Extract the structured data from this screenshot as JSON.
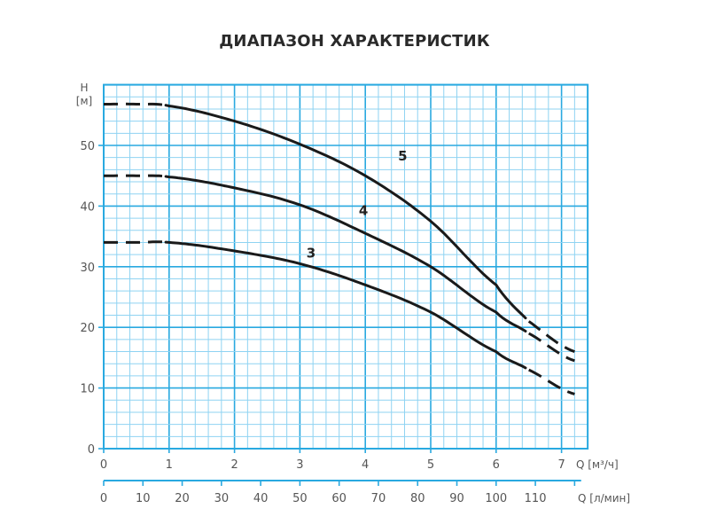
{
  "chart_data": {
    "type": "line",
    "title": "ДИАПАЗОН ХАРАКТЕРИСТИК",
    "xlabel": "Q [м³/ч]",
    "xlabel_secondary": "Q [л/мин]",
    "ylabel_top": "H",
    "ylabel_unit": "[м]",
    "xlim": [
      0,
      7.4
    ],
    "ylim": [
      0,
      60
    ],
    "x_ticks": [
      "0",
      "1",
      "2",
      "3",
      "4",
      "5",
      "6",
      "7"
    ],
    "x_secondary_ticks": [
      "0",
      "10",
      "20",
      "30",
      "40",
      "50",
      "60",
      "70",
      "80",
      "90",
      "100",
      "110"
    ],
    "y_ticks": [
      "0",
      "10",
      "20",
      "30",
      "40",
      "50"
    ],
    "grid": true,
    "x": [
      0,
      0.5,
      1,
      2,
      3,
      4,
      5,
      6,
      6.5,
      7.2
    ],
    "series": [
      {
        "name": "5",
        "values": [
          56.8,
          56.8,
          56.5,
          54,
          50.2,
          45,
          37.5,
          27,
          21,
          16
        ]
      },
      {
        "name": "4",
        "values": [
          45,
          45,
          44.8,
          43,
          40.2,
          35.5,
          30,
          22.5,
          19,
          14.5
        ]
      },
      {
        "name": "3",
        "values": [
          34,
          34,
          34,
          32.6,
          30.5,
          27,
          22.5,
          16,
          13,
          9
        ]
      }
    ],
    "dashed_ranges": "Q < 1 and Q > 6.4",
    "colors": {
      "grid_major": "#29a9e0",
      "grid_minor": "#8fd3f2",
      "curve": "#1a1a1a"
    }
  }
}
